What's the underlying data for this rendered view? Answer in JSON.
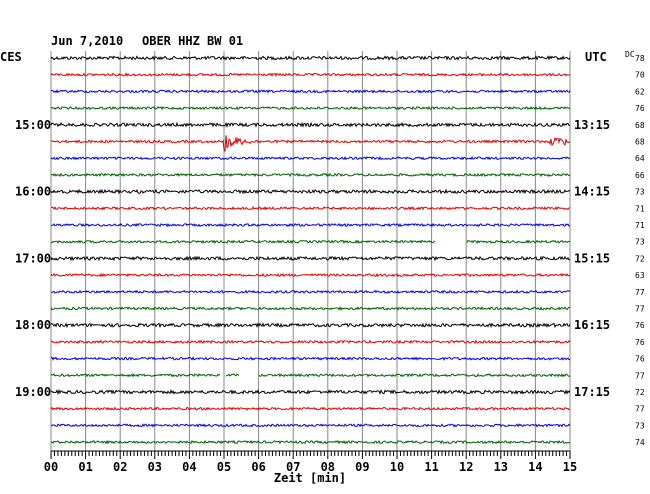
{
  "header": {
    "date": "Jun 7,2010",
    "station": "OBER HHZ BW 01",
    "left_tz": "CES",
    "right_tz": "UTC",
    "dc_label": "DC"
  },
  "chart_data": {
    "type": "line",
    "title": "Jun 7,2010   OBER HHZ BW 01",
    "xlabel": "Zeit [min]",
    "x_ticks": [
      "00",
      "01",
      "02",
      "03",
      "04",
      "05",
      "06",
      "07",
      "08",
      "09",
      "10",
      "11",
      "12",
      "13",
      "14",
      "15"
    ],
    "xlim": [
      0,
      15
    ],
    "left_hour_labels": [
      "15:00",
      "16:00",
      "17:00",
      "18:00",
      "19:00"
    ],
    "right_time_labels": [
      "13:15",
      "14:15",
      "15:15",
      "16:15",
      "17:15"
    ],
    "trace_colors": [
      "#000000",
      "#e00000",
      "#0000e0",
      "#006000"
    ],
    "dc_values": [
      "78",
      "70",
      "62",
      "76",
      "68",
      "68",
      "64",
      "66",
      "73",
      "71",
      "71",
      "73",
      "72",
      "63",
      "77",
      "77",
      "76",
      "76",
      "76",
      "77",
      "72",
      "77",
      "73",
      "74"
    ],
    "events": [
      {
        "trace": 5,
        "start_min": 5.0,
        "end_min": 6.0,
        "type": "earthquake"
      },
      {
        "trace": 5,
        "start_min": 14.4,
        "end_min": 14.9,
        "type": "burst"
      },
      {
        "trace": 11,
        "start_min": 11.1,
        "end_min": 12.0,
        "type": "gap"
      },
      {
        "trace": 19,
        "start_min": 4.9,
        "end_min": 5.05,
        "type": "gap"
      },
      {
        "trace": 19,
        "start_min": 5.45,
        "end_min": 6.0,
        "type": "gap"
      }
    ],
    "grid": true
  }
}
